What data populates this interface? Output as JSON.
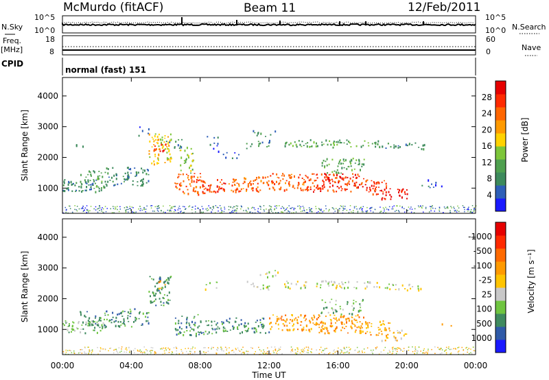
{
  "header": {
    "station": "McMurdo (fitACF)",
    "beam": "Beam 11",
    "date": "12/Feb/2011"
  },
  "panels": {
    "nsky_label": "N.Sky",
    "nsearch_label": "N.Search",
    "nsky_ticks": [
      "10^5",
      "10^0"
    ],
    "nsearch_ticks": [
      "10^5",
      "10^0"
    ],
    "freq_label_1": "Freq.",
    "freq_label_2": "[MHz]",
    "freq_ticks": [
      "18",
      "8"
    ],
    "nave_label": "Nave",
    "nave_ticks": [
      "60",
      "0"
    ],
    "cpid_label": "CPID",
    "cpid_value": "normal (fast) 151"
  },
  "chart_data": [
    {
      "type": "heatmap",
      "name": "power-panel",
      "ylabel": "Slant Range [km]",
      "yticks": [
        "1000",
        "2000",
        "3000",
        "4000"
      ],
      "ylim": [
        180,
        4600
      ],
      "xlim": [
        0,
        24
      ],
      "colorbar_label": "Power [dB]",
      "colorbar_ticks": [
        "4",
        "8",
        "12",
        "16",
        "20",
        "24",
        "28"
      ],
      "colors": [
        "#1a1aff",
        "#2e5fb8",
        "#3d8a5c",
        "#4fa04f",
        "#7dc63a",
        "#ffd200",
        "#ff9a00",
        "#ff6600",
        "#ff2a00",
        "#e60000"
      ]
    },
    {
      "type": "heatmap",
      "name": "velocity-panel",
      "ylabel": "Slant Range [km]",
      "yticks": [
        "1000",
        "2000",
        "3000",
        "4000"
      ],
      "ylim": [
        180,
        4600
      ],
      "xlim": [
        0,
        24
      ],
      "colorbar_label": "Velocity [m s⁻¹]",
      "colorbar_ticks": [
        "1000",
        "500",
        "100",
        "25",
        "-25",
        "-100",
        "-500",
        "-1000"
      ],
      "colors": [
        "#1a1aff",
        "#2f5aa8",
        "#3f8a5f",
        "#6fc540",
        "#c8c8c8",
        "#ffc400",
        "#ff9a00",
        "#ff6a00",
        "#ff2a00",
        "#e60000"
      ]
    }
  ],
  "x_axis": {
    "ticks": [
      "00:00",
      "04:00",
      "08:00",
      "12:00",
      "16:00",
      "20:00",
      "00:00"
    ],
    "label": "Time UT"
  }
}
